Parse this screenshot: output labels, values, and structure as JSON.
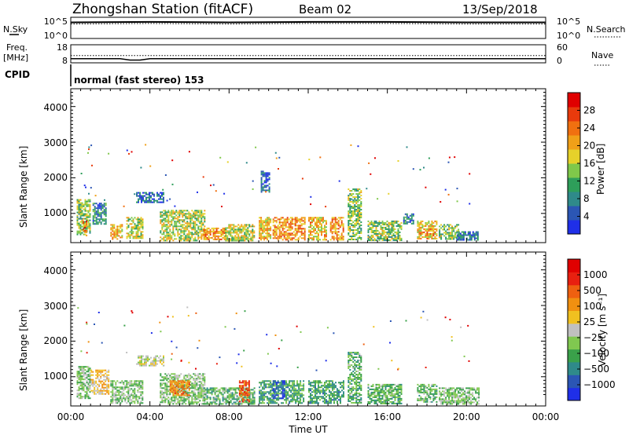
{
  "header": {
    "station": "Zhongshan Station (fitACF)",
    "beam": "Beam 02",
    "date": "13/Sep/2018"
  },
  "noise_panel": {
    "left_label": "N.Sky",
    "left_ticks": [
      "10^5",
      "10^0"
    ],
    "right_ticks": [
      "10^5",
      "10^0"
    ],
    "right_label": "N.Search"
  },
  "freq_panel": {
    "left_label_1": "Freq.",
    "left_label_2": "[MHz]",
    "left_ticks": [
      "18",
      "8"
    ],
    "right_ticks": [
      "60",
      "0"
    ],
    "right_label": "Nave"
  },
  "cpid": {
    "label": "CPID",
    "text": "normal (fast stereo) 153"
  },
  "axes": {
    "ylabel": "Slant Range [km]",
    "yticks": [
      "4000",
      "3000",
      "2000",
      "1000"
    ],
    "xticks": [
      "00:00",
      "04:00",
      "08:00",
      "12:00",
      "16:00",
      "20:00",
      "00:00"
    ],
    "xlabel": "Time UT"
  },
  "colors": {
    "power_scale": [
      "#1f2fe8",
      "#2b56b4",
      "#2f8a8a",
      "#2e9e5a",
      "#7fc84a",
      "#e6d12a",
      "#f0a018",
      "#f07010",
      "#e83a0c",
      "#e00000"
    ],
    "velocity_scale": [
      "#1f2fe8",
      "#2b56b4",
      "#2f8a8a",
      "#3aa14a",
      "#80c850",
      "#c0c0c0",
      "#f0c020",
      "#f09010",
      "#ee6010",
      "#e82010",
      "#e00000"
    ]
  },
  "power_colorbar": {
    "label": "Power [dB]",
    "ticks": [
      "28",
      "24",
      "20",
      "16",
      "12",
      "8",
      "4"
    ]
  },
  "velocity_colorbar": {
    "label": "Velocity [m s⁻¹]",
    "ticks": [
      "1000",
      "500",
      "100",
      "25",
      "−25",
      "−100",
      "−500",
      "−1000"
    ]
  },
  "chart_data": [
    {
      "type": "line",
      "name": "N.Sky / N.Search",
      "xlim": [
        0,
        24
      ],
      "ylim_log10": [
        0,
        5
      ],
      "note_values": "noise level roughly constant near 10^4 through the day",
      "x": [
        0,
        4,
        8,
        12,
        16,
        20,
        24
      ],
      "y_log10": [
        3.8,
        3.9,
        3.8,
        3.9,
        3.9,
        3.8,
        3.8
      ]
    },
    {
      "type": "line",
      "name": "Freq / Nave",
      "xlim": [
        0,
        24
      ],
      "freq_ylim": [
        8,
        18
      ],
      "nave_ylim": [
        0,
        60
      ],
      "x": [
        0,
        2.5,
        3.0,
        3.5,
        4.0,
        24
      ],
      "freq": [
        10.3,
        10.3,
        9.5,
        9.5,
        10.3,
        10.3
      ],
      "nave": [
        24,
        24,
        24,
        24,
        24,
        24
      ]
    },
    {
      "type": "heatmap",
      "name": "Power",
      "xlim": [
        0,
        24
      ],
      "ylim": [
        180,
        4500
      ],
      "clim": [
        0,
        32
      ],
      "patches": [
        {
          "t0": 0.3,
          "t1": 1.0,
          "r0": 400,
          "r1": 1400,
          "v": 14
        },
        {
          "t0": 0.6,
          "t1": 0.8,
          "r0": 400,
          "r1": 800,
          "v": 26
        },
        {
          "t0": 1.1,
          "t1": 1.8,
          "r0": 700,
          "r1": 1300,
          "v": 8
        },
        {
          "t0": 2.0,
          "t1": 2.6,
          "r0": 300,
          "r1": 700,
          "v": 20
        },
        {
          "t0": 2.8,
          "t1": 3.6,
          "r0": 300,
          "r1": 900,
          "v": 16
        },
        {
          "t0": 3.3,
          "t1": 4.7,
          "r0": 1300,
          "r1": 1600,
          "v": 6
        },
        {
          "t0": 4.5,
          "t1": 6.8,
          "r0": 250,
          "r1": 1100,
          "v": 16
        },
        {
          "t0": 6.7,
          "t1": 7.8,
          "r0": 250,
          "r1": 600,
          "v": 22
        },
        {
          "t0": 7.8,
          "t1": 9.3,
          "r0": 250,
          "r1": 700,
          "v": 16
        },
        {
          "t0": 9.5,
          "t1": 10.1,
          "r0": 250,
          "r1": 900,
          "v": 20
        },
        {
          "t0": 9.6,
          "t1": 10.0,
          "r0": 1600,
          "r1": 2200,
          "v": 6
        },
        {
          "t0": 10.2,
          "t1": 11.8,
          "r0": 250,
          "r1": 900,
          "v": 22
        },
        {
          "t0": 12.0,
          "t1": 12.9,
          "r0": 250,
          "r1": 900,
          "v": 20
        },
        {
          "t0": 13.1,
          "t1": 13.8,
          "r0": 250,
          "r1": 900,
          "v": 22
        },
        {
          "t0": 14.0,
          "t1": 14.7,
          "r0": 250,
          "r1": 1700,
          "v": 14
        },
        {
          "t0": 15.0,
          "t1": 16.7,
          "r0": 250,
          "r1": 800,
          "v": 14
        },
        {
          "t0": 16.8,
          "t1": 17.3,
          "r0": 700,
          "r1": 1000,
          "v": 8
        },
        {
          "t0": 17.5,
          "t1": 18.5,
          "r0": 300,
          "r1": 800,
          "v": 20
        },
        {
          "t0": 18.6,
          "t1": 19.6,
          "r0": 300,
          "r1": 700,
          "v": 14
        },
        {
          "t0": 19.5,
          "t1": 20.6,
          "r0": 250,
          "r1": 500,
          "v": 6
        }
      ]
    },
    {
      "type": "heatmap",
      "name": "Velocity",
      "xlim": [
        0,
        24
      ],
      "ylim": [
        180,
        4500
      ],
      "clim": [
        -1000,
        1000
      ],
      "patches": [
        {
          "t0": 0.3,
          "t1": 1.0,
          "r0": 400,
          "r1": 1300,
          "v": -200
        },
        {
          "t0": 1.0,
          "t1": 1.9,
          "r0": 500,
          "r1": 1200,
          "v": 200
        },
        {
          "t0": 2.0,
          "t1": 3.6,
          "r0": 250,
          "r1": 900,
          "v": -200
        },
        {
          "t0": 3.3,
          "t1": 4.7,
          "r0": 1300,
          "r1": 1600,
          "v": 0
        },
        {
          "t0": 4.5,
          "t1": 6.8,
          "r0": 250,
          "r1": 1100,
          "v": -200
        },
        {
          "t0": 5.0,
          "t1": 6.0,
          "r0": 500,
          "r1": 900,
          "v": 400
        },
        {
          "t0": 6.7,
          "t1": 9.3,
          "r0": 250,
          "r1": 700,
          "v": -300
        },
        {
          "t0": 8.5,
          "t1": 9.0,
          "r0": 300,
          "r1": 900,
          "v": 600
        },
        {
          "t0": 9.5,
          "t1": 11.8,
          "r0": 250,
          "r1": 900,
          "v": -400
        },
        {
          "t0": 10.2,
          "t1": 10.8,
          "r0": 400,
          "r1": 900,
          "v": -800
        },
        {
          "t0": 12.0,
          "t1": 13.8,
          "r0": 250,
          "r1": 900,
          "v": -400
        },
        {
          "t0": 14.0,
          "t1": 14.7,
          "r0": 250,
          "r1": 1700,
          "v": -300
        },
        {
          "t0": 15.0,
          "t1": 16.7,
          "r0": 250,
          "r1": 800,
          "v": -300
        },
        {
          "t0": 17.5,
          "t1": 18.5,
          "r0": 300,
          "r1": 800,
          "v": -300
        },
        {
          "t0": 18.6,
          "t1": 20.6,
          "r0": 250,
          "r1": 700,
          "v": -200
        }
      ]
    }
  ]
}
